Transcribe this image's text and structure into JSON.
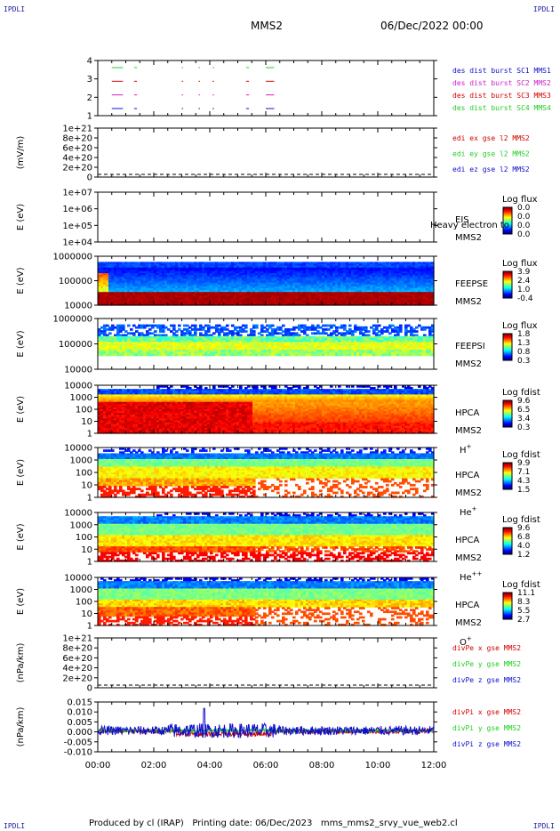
{
  "corner_label": "IPDLI",
  "header": {
    "title": "MMS2",
    "date": "06/Dec/2022 00:00"
  },
  "footer": {
    "text": "Produced by cl (IRAP)   Printing date: 06/Dec/2023   mms_mms2_srvy_vue_web2.cl"
  },
  "time_axis": {
    "ticks": [
      "00:00",
      "02:00",
      "04:00",
      "06:00",
      "08:00",
      "10:00",
      "12:00"
    ],
    "range_hours": [
      0,
      12
    ]
  },
  "colors": {
    "red": "#d40000",
    "green": "#22cc22",
    "blue": "#1010cc",
    "magenta": "#cc22cc"
  },
  "chart_data": [
    {
      "type": "line",
      "id": "burst",
      "yticks": [
        "4",
        "3",
        "2",
        "1"
      ],
      "legend": [
        {
          "text": "des dist burst SC1 MMS1",
          "color": "#1010cc"
        },
        {
          "text": "des dist burst SC2 MMS2",
          "color": "#cc22cc"
        },
        {
          "text": "des dist burst SC3 MMS3",
          "color": "#d40000"
        },
        {
          "text": "des dist burst SC4 MMS4",
          "color": "#22cc22"
        }
      ],
      "series": [
        {
          "level": 4,
          "color": "#22cc22",
          "segments": [
            [
              0.5,
              0.9
            ],
            [
              1.3,
              1.4
            ],
            [
              3.0,
              3.05
            ],
            [
              3.6,
              3.65
            ],
            [
              4.1,
              4.15
            ],
            [
              5.3,
              5.4
            ],
            [
              6.0,
              6.3
            ]
          ]
        },
        {
          "level": 3,
          "color": "#d40000",
          "segments": [
            [
              0.5,
              0.9
            ],
            [
              1.3,
              1.4
            ],
            [
              3.0,
              3.05
            ],
            [
              3.6,
              3.65
            ],
            [
              4.1,
              4.15
            ],
            [
              5.3,
              5.4
            ],
            [
              6.0,
              6.3
            ]
          ]
        },
        {
          "level": 2,
          "color": "#cc22cc",
          "segments": [
            [
              0.5,
              0.9
            ],
            [
              1.3,
              1.4
            ],
            [
              3.0,
              3.05
            ],
            [
              3.6,
              3.65
            ],
            [
              4.1,
              4.15
            ],
            [
              5.3,
              5.4
            ],
            [
              6.0,
              6.3
            ]
          ]
        },
        {
          "level": 1,
          "color": "#1010cc",
          "segments": [
            [
              0.5,
              0.9
            ],
            [
              1.3,
              1.4
            ],
            [
              3.0,
              3.05
            ],
            [
              3.6,
              3.65
            ],
            [
              4.1,
              4.15
            ],
            [
              5.3,
              5.4
            ],
            [
              6.0,
              6.3
            ]
          ]
        }
      ]
    },
    {
      "type": "line",
      "id": "edi",
      "ylabel": "(mV/m)",
      "yticks": [
        "1e+21",
        "8e+20",
        "6e+20",
        "4e+20",
        "2e+20",
        "0"
      ],
      "legend": [
        {
          "text": "edi ex gse l2 MMS2",
          "color": "#d40000"
        },
        {
          "text": "edi ey gse l2 MMS2",
          "color": "#22cc22"
        },
        {
          "text": "edi ez gse l2 MMS2",
          "color": "#1010cc"
        }
      ]
    },
    {
      "type": "heatmap",
      "id": "eis",
      "ylabel": "E (eV)",
      "yticks": [
        "1e+07",
        "1e+06",
        "1e+05",
        "1e+04"
      ],
      "instrument": [
        "EIS",
        "MMS2"
      ],
      "overlay_text": "Heavy electron to",
      "colorbar": {
        "title": "Log flux",
        "ticks": [
          "0.0",
          "0.0",
          "0.0",
          "0.0"
        ]
      }
    },
    {
      "type": "heatmap",
      "id": "feepse",
      "ylabel": "E (eV)",
      "yticks": [
        "1000000",
        "100000",
        "10000"
      ],
      "instrument": [
        "FEEPSE",
        "MMS2"
      ],
      "colorbar": {
        "title": "Log flux",
        "ticks": [
          "3.9",
          "2.4",
          "1.0",
          "-0.4"
        ]
      }
    },
    {
      "type": "heatmap",
      "id": "feepsi",
      "ylabel": "E (eV)",
      "yticks": [
        "1000000",
        "100000",
        "10000"
      ],
      "instrument": [
        "FEEPSI",
        "MMS2"
      ],
      "colorbar": {
        "title": "Log flux",
        "ticks": [
          "1.8",
          "1.3",
          "0.8",
          "0.3"
        ]
      }
    },
    {
      "type": "heatmap",
      "id": "hpca_h",
      "ylabel": "E (eV)",
      "yticks": [
        "10000",
        "1000",
        "100",
        "10",
        "1"
      ],
      "instrument": [
        "HPCA",
        "MMS2"
      ],
      "species": "H",
      "charge": "+",
      "colorbar": {
        "title": "Log fdist",
        "ticks": [
          "9.6",
          "6.5",
          "3.4",
          "0.3"
        ]
      }
    },
    {
      "type": "heatmap",
      "id": "hpca_he",
      "ylabel": "E (eV)",
      "yticks": [
        "10000",
        "1000",
        "100",
        "10",
        "1"
      ],
      "instrument": [
        "HPCA",
        "MMS2"
      ],
      "species": "He",
      "charge": "+",
      "colorbar": {
        "title": "Log fdist",
        "ticks": [
          "9.9",
          "7.1",
          "4.3",
          "1.5"
        ]
      }
    },
    {
      "type": "heatmap",
      "id": "hpca_he2",
      "ylabel": "E (eV)",
      "yticks": [
        "10000",
        "1000",
        "100",
        "10",
        "1"
      ],
      "instrument": [
        "HPCA",
        "MMS2"
      ],
      "species": "He",
      "charge": "++",
      "colorbar": {
        "title": "Log fdist",
        "ticks": [
          "9.6",
          "6.8",
          "4.0",
          "1.2"
        ]
      }
    },
    {
      "type": "heatmap",
      "id": "hpca_o",
      "ylabel": "E (eV)",
      "yticks": [
        "10000",
        "1000",
        "100",
        "10",
        "1"
      ],
      "instrument": [
        "HPCA",
        "MMS2"
      ],
      "species": "O",
      "charge": "+",
      "colorbar": {
        "title": "Log fdist",
        "ticks": [
          "11.1",
          "8.3",
          "5.5",
          "2.7"
        ]
      }
    },
    {
      "type": "line",
      "id": "divpe",
      "ylabel": "(nPa/km)",
      "yticks": [
        "1e+21",
        "8e+20",
        "6e+20",
        "4e+20",
        "2e+20",
        "0"
      ],
      "legend": [
        {
          "text": "divPe x gse MMS2",
          "color": "#d40000"
        },
        {
          "text": "divPe y gse MMS2",
          "color": "#22cc22"
        },
        {
          "text": "divPe z gse MMS2",
          "color": "#1010cc"
        }
      ]
    },
    {
      "type": "line",
      "id": "divpi",
      "ylabel": "(nPa/km)",
      "yticks": [
        "0.015",
        "0.010",
        "0.005",
        "0.000",
        "-0.005",
        "-0.010"
      ],
      "ylim": [
        -0.0115,
        0.0155
      ],
      "legend": [
        {
          "text": "divPi x gse MMS2",
          "color": "#d40000"
        },
        {
          "text": "divPi y gse MMS2",
          "color": "#22cc22"
        },
        {
          "text": "divPi z gse MMS2",
          "color": "#1010cc"
        }
      ]
    }
  ]
}
